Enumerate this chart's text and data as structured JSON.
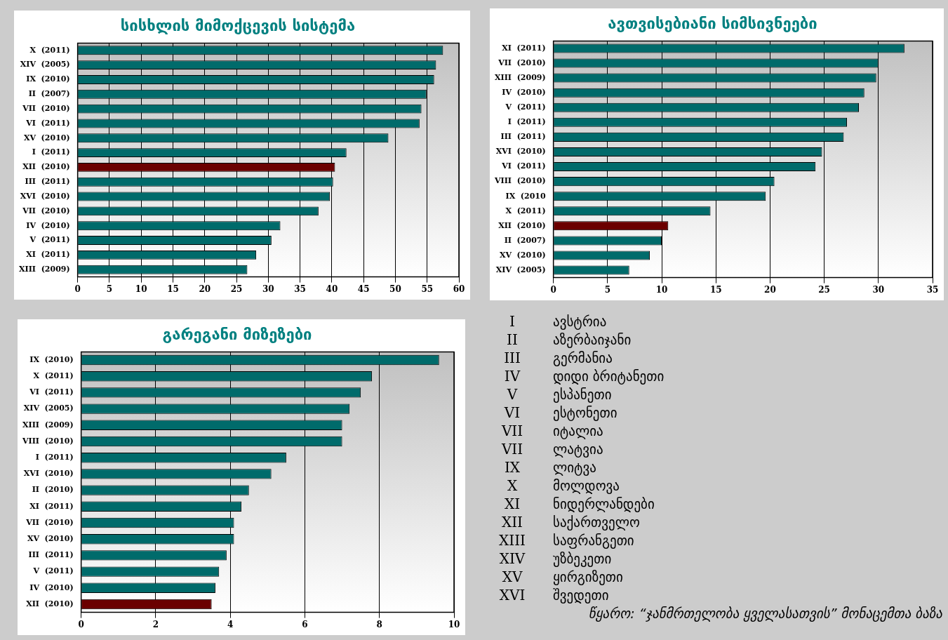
{
  "chart_data": [
    {
      "type": "bar",
      "orientation": "horizontal",
      "title": "სისხლის მიმოქცევის სისტემა",
      "categories": [
        "X  (2011)",
        "XIV  (2005)",
        "IX  (2010)",
        "II  (2007)",
        "VII  (2010)",
        "VI  (2011)",
        "XV  (2010)",
        "I  (2011)",
        "XII  (2010)",
        "III  (2011)",
        "XVI  (2010)",
        "VII  (2010)",
        "IV  (2010)",
        "V  (2011)",
        "XI  (2011)",
        "XIII  (2009)"
      ],
      "values": [
        57.5,
        56.4,
        56.1,
        54.9,
        54.1,
        53.8,
        48.9,
        42.3,
        40.5,
        40.2,
        39.7,
        37.9,
        31.9,
        30.5,
        28.1,
        26.7
      ],
      "colors": [
        "#006b6b",
        "#006b6b",
        "#006b6b",
        "#006b6b",
        "#006b6b",
        "#006b6b",
        "#006b6b",
        "#006b6b",
        "#6b0000",
        "#006b6b",
        "#006b6b",
        "#006b6b",
        "#006b6b",
        "#006b6b",
        "#006b6b",
        "#006b6b"
      ],
      "xlim": [
        0,
        60
      ],
      "xticks": [
        0,
        5,
        10,
        15,
        20,
        25,
        30,
        35,
        40,
        45,
        50,
        55,
        60
      ],
      "grid": "x"
    },
    {
      "type": "bar",
      "orientation": "horizontal",
      "title": "ავთვისებიანი სიმსივნეები",
      "categories": [
        "XI  (2011)",
        "VII  (2010)",
        "XIII  (2009)",
        "IV  (2010)",
        "V  (2011)",
        "I  (2011)",
        "III  (2011)",
        "XVI  (2010)",
        "VI  (2011)",
        "VIII  (2010)",
        "IX  (2010",
        "X  (2011)",
        "XII  (2010)",
        "II  (2007)",
        "XV  (2010)",
        "XIV  (2005)"
      ],
      "values": [
        32.4,
        30.0,
        29.8,
        28.7,
        28.2,
        27.1,
        26.8,
        24.8,
        24.2,
        20.4,
        19.6,
        14.5,
        10.6,
        10.0,
        8.9,
        7.0
      ],
      "colors": [
        "#006b6b",
        "#006b6b",
        "#006b6b",
        "#006b6b",
        "#006b6b",
        "#006b6b",
        "#006b6b",
        "#006b6b",
        "#006b6b",
        "#006b6b",
        "#006b6b",
        "#006b6b",
        "#6b0000",
        "#006b6b",
        "#006b6b",
        "#006b6b"
      ],
      "xlim": [
        0,
        35
      ],
      "xticks": [
        0,
        5,
        10,
        15,
        20,
        25,
        30,
        35
      ],
      "grid": "x"
    },
    {
      "type": "bar",
      "orientation": "horizontal",
      "title": "გარეგანი მიზეზები",
      "categories": [
        "IX  (2010)",
        "X  (2011)",
        "VI  (2011)",
        "XIV  (2005)",
        "XIII  (2009)",
        "VIII  (2010)",
        "I  (2011)",
        "XVI  (2010)",
        "II  (2010)",
        "XI  (2011)",
        "VII  (2010)",
        "XV  (2010)",
        "III  (2011)",
        "V  (2011)",
        "IV  (2010)",
        "XII  (2010)"
      ],
      "values": [
        9.6,
        7.8,
        7.5,
        7.2,
        7.0,
        7.0,
        5.5,
        5.1,
        4.5,
        4.3,
        4.1,
        4.1,
        3.9,
        3.7,
        3.6,
        3.5
      ],
      "colors": [
        "#006b6b",
        "#006b6b",
        "#006b6b",
        "#006b6b",
        "#006b6b",
        "#006b6b",
        "#006b6b",
        "#006b6b",
        "#006b6b",
        "#006b6b",
        "#006b6b",
        "#006b6b",
        "#006b6b",
        "#006b6b",
        "#006b6b",
        "#6b0000"
      ],
      "xlim": [
        0,
        10
      ],
      "xticks": [
        0,
        2,
        4,
        6,
        8,
        10
      ],
      "grid": "x"
    },
    {
      "type": "other",
      "annotations": [
        "I",
        "ავსტრია",
        "II",
        "აზერბაიჯანი",
        "III",
        "გერმანია",
        "IV",
        "დიდი ბრიტანეთი",
        "V",
        "ესპანეთი",
        "VI",
        "ესტონეთი",
        "VII",
        "იტალია",
        "VII",
        "ლატვია",
        "IX",
        "ლიტვა",
        "X",
        "მოლდოვა",
        "XI",
        "ნიდერლანდები",
        "XII",
        "საქართველო",
        "XIII",
        "საფრანგეთი",
        "XIV",
        "უზბეკეთი",
        "XV",
        "ყირგიზეთი",
        "XVI",
        "შვედეთი",
        "წყარო: “ჯანმრთელობა ყველასათვის” მონაცემთა ბაზა"
      ]
    }
  ]
}
